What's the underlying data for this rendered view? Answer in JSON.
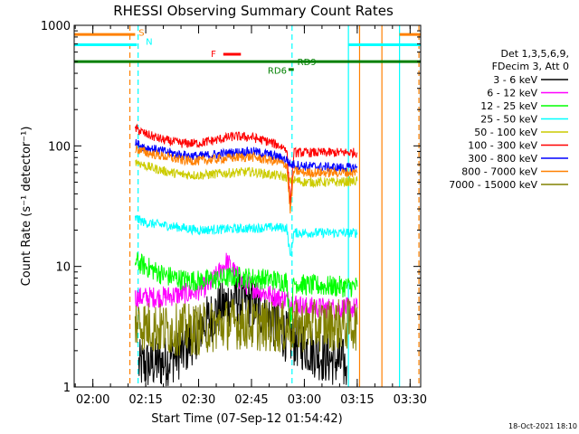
{
  "chart_data": {
    "type": "line",
    "title": "RHESSI Observing Summary Count Rates",
    "xlabel": "Start Time (07-Sep-12 01:54:42)",
    "ylabel": "Count Rate (s⁻¹ detector⁻¹)",
    "y_scale": "log",
    "ylim": [
      1,
      1000
    ],
    "xlim": [
      "01:54:42",
      "03:33:00"
    ],
    "x_ticks": [
      "02:00",
      "02:15",
      "02:30",
      "02:45",
      "03:00",
      "03:15",
      "03:30"
    ],
    "y_ticks": [
      "1",
      "10",
      "100",
      "1000"
    ],
    "timestamp": "18-Oct-2021 18:10",
    "legend": {
      "placement": "right",
      "header": [
        "Det 1,3,5,6,9,",
        "FDecim 3, Att 0"
      ],
      "entries": [
        {
          "label": "3 - 6 keV",
          "color": "#000000"
        },
        {
          "label": "6 - 12 keV",
          "color": "#ff00ff"
        },
        {
          "label": "12 - 25 keV",
          "color": "#00ff00"
        },
        {
          "label": "25 - 50 keV",
          "color": "#00ffff"
        },
        {
          "label": "50 - 100 keV",
          "color": "#cccc00"
        },
        {
          "label": "100 - 300 keV",
          "color": "#ff0000"
        },
        {
          "label": "300 - 800 keV",
          "color": "#0000ff"
        },
        {
          "label": "800 - 7000 keV",
          "color": "#ff8000"
        },
        {
          "label": "7000 - 15000 keV",
          "color": "#808000"
        }
      ]
    },
    "flag_labels": [
      {
        "label": "S",
        "color": "#ff8000"
      },
      {
        "label": "N",
        "color": "#00ffff"
      },
      {
        "label": "F",
        "color": "#ff0000"
      },
      {
        "label": "RD9",
        "color": "#008000"
      },
      {
        "label": "RD6",
        "color": "#008000"
      }
    ],
    "boundaries": [
      {
        "time": "02:10:30",
        "color": "#ff8000",
        "style": "dashed"
      },
      {
        "time": "02:12:50",
        "color": "#00ffff",
        "style": "dashed"
      },
      {
        "time": "02:56:30",
        "color": "#00ffff",
        "style": "dashed"
      },
      {
        "time": "03:12:30",
        "color": "#00ffff",
        "style": "solid"
      },
      {
        "time": "03:15:40",
        "color": "#ff8000",
        "style": "solid"
      },
      {
        "time": "03:22:00",
        "color": "#ff8000",
        "style": "solid"
      },
      {
        "time": "03:27:00",
        "color": "#00ffff",
        "style": "solid"
      },
      {
        "time": "03:32:30",
        "color": "#ff8000",
        "style": "dashed"
      }
    ],
    "flag_bars": [
      {
        "name": "SAA",
        "y": 840,
        "color": "#ff8000",
        "segments": [
          [
            "01:54:42",
            "02:12:00"
          ],
          [
            "03:27:00",
            "03:33:00"
          ]
        ]
      },
      {
        "name": "Night",
        "y": 690,
        "color": "#00ffff",
        "segments": [
          [
            "01:54:42",
            "02:12:30"
          ],
          [
            "03:12:30",
            "03:33:00"
          ]
        ]
      },
      {
        "name": "Flare",
        "y": 575,
        "color": "#ff0000",
        "segments": [
          [
            "02:37:00",
            "02:42:00"
          ]
        ]
      },
      {
        "name": "RD9",
        "y": 500,
        "color": "#008000",
        "segments": [
          [
            "01:54:42",
            "03:33:00"
          ]
        ]
      },
      {
        "name": "RD6",
        "y": 430,
        "color": "#008000",
        "segments": [
          [
            "02:55:30",
            "02:57:00"
          ]
        ]
      }
    ],
    "series": [
      {
        "name": "3 - 6 keV",
        "color": "#000000",
        "noise": "high",
        "x": [
          "02:13",
          "02:20",
          "02:26",
          "02:30",
          "02:35",
          "02:40",
          "02:45",
          "02:50",
          "02:55",
          "03:00",
          "03:05",
          "03:10",
          "03:12"
        ],
        "y": [
          1.5,
          1.6,
          2.0,
          3.0,
          4.2,
          5.5,
          5.0,
          3.8,
          2.6,
          2.2,
          1.8,
          1.6,
          1.5
        ]
      },
      {
        "name": "6 - 12 keV",
        "color": "#ff00ff",
        "noise": "medium",
        "x": [
          "02:12",
          "02:20",
          "02:28",
          "02:33",
          "02:36",
          "02:38",
          "02:42",
          "02:50",
          "02:56",
          "03:00",
          "03:08",
          "03:15"
        ],
        "y": [
          5.5,
          5.6,
          6.0,
          7.0,
          9.0,
          11.0,
          7.5,
          5.8,
          5.2,
          4.6,
          4.5,
          4.5
        ]
      },
      {
        "name": "12 - 25 keV",
        "color": "#00ff00",
        "noise": "medium",
        "x": [
          "02:12",
          "02:15",
          "02:20",
          "02:25",
          "02:30",
          "02:35",
          "02:40",
          "02:45",
          "02:50",
          "02:55",
          "02:56",
          "02:57",
          "03:00",
          "03:10",
          "03:15"
        ],
        "y": [
          11.0,
          10.0,
          8.5,
          7.8,
          7.6,
          7.8,
          8.2,
          8.0,
          7.8,
          7.5,
          3.5,
          7.4,
          7.0,
          6.8,
          6.8
        ]
      },
      {
        "name": "25 - 50 keV",
        "color": "#00ffff",
        "noise": "low",
        "x": [
          "02:12",
          "02:15",
          "02:20",
          "02:25",
          "02:30",
          "02:40",
          "02:50",
          "02:55",
          "02:56",
          "02:57",
          "03:00",
          "03:10",
          "03:15"
        ],
        "y": [
          25,
          23,
          22,
          21,
          20,
          20.5,
          21,
          21,
          12,
          19,
          19,
          19,
          19
        ]
      },
      {
        "name": "50 - 100 keV",
        "color": "#cccc00",
        "noise": "low",
        "x": [
          "02:12",
          "02:15",
          "02:20",
          "02:25",
          "02:30",
          "02:40",
          "02:45",
          "02:50",
          "02:55",
          "02:56",
          "02:57",
          "03:00",
          "03:10",
          "03:15"
        ],
        "y": [
          75,
          68,
          62,
          58,
          57,
          60,
          61,
          58,
          55,
          50,
          52,
          50,
          50,
          51
        ]
      },
      {
        "name": "100 - 300 keV",
        "color": "#ff0000",
        "noise": "low",
        "x": [
          "02:12",
          "02:15",
          "02:20",
          "02:25",
          "02:30",
          "02:35",
          "02:40",
          "02:45",
          "02:50",
          "02:55",
          "02:56",
          "02:57",
          "03:00",
          "03:10",
          "03:15"
        ],
        "y": [
          140,
          125,
          112,
          105,
          105,
          112,
          120,
          118,
          108,
          95,
          32,
          88,
          88,
          88,
          88
        ]
      },
      {
        "name": "300 - 800 keV",
        "color": "#0000ff",
        "noise": "low",
        "x": [
          "02:12",
          "02:15",
          "02:20",
          "02:25",
          "02:30",
          "02:40",
          "02:45",
          "02:50",
          "02:55",
          "02:56",
          "02:57",
          "03:00",
          "03:10",
          "03:15"
        ],
        "y": [
          105,
          97,
          90,
          84,
          82,
          88,
          90,
          85,
          77,
          70,
          70,
          68,
          66,
          66
        ]
      },
      {
        "name": "800 - 7000 keV",
        "color": "#ff8000",
        "noise": "low",
        "x": [
          "02:12",
          "02:15",
          "02:20",
          "02:25",
          "02:30",
          "02:40",
          "02:45",
          "02:50",
          "02:55",
          "02:56",
          "02:57",
          "03:00",
          "03:10",
          "03:15"
        ],
        "y": [
          95,
          88,
          82,
          76,
          75,
          80,
          81,
          76,
          70,
          28,
          62,
          60,
          60,
          60
        ]
      },
      {
        "name": "7000 - 15000 keV",
        "color": "#808000",
        "noise": "high",
        "x": [
          "02:12",
          "02:15",
          "02:20",
          "02:25",
          "02:30",
          "02:35",
          "02:40",
          "02:45",
          "02:50",
          "02:55",
          "03:00",
          "03:10",
          "03:15"
        ],
        "y": [
          3.5,
          3.2,
          3.0,
          3.0,
          3.0,
          3.2,
          3.4,
          3.3,
          3.2,
          3.1,
          3.2,
          3.3,
          3.3
        ]
      }
    ]
  }
}
